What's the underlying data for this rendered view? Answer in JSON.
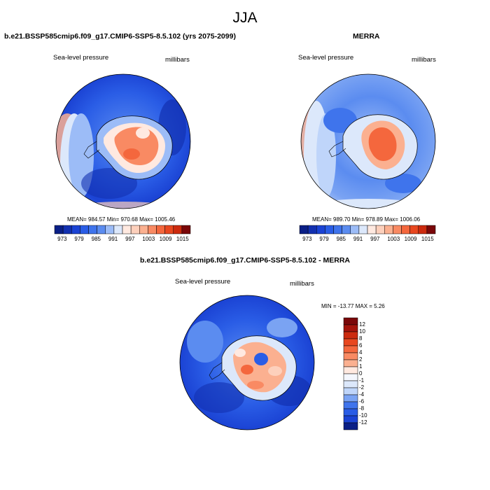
{
  "title": "JJA",
  "colors": {
    "pos": [
      "#ffe9e0",
      "#fdd0bc",
      "#fbb090",
      "#f98a63",
      "#f4673d",
      "#e8471f",
      "#cc2a0e",
      "#a4130b",
      "#7a0709"
    ],
    "neg": [
      "#dce8fb",
      "#bfd5fa",
      "#9cbcf7",
      "#7aa3f3",
      "#5b8cf0",
      "#3f74ec",
      "#2a5de6",
      "#1b43d4",
      "#1230b0",
      "#0a1f86"
    ],
    "zero": "#f4f7fe"
  },
  "panels": [
    {
      "title": "b.e21.BSSP585cmip6.f09_g17.CMIP6-SSP5-8.5.102 (yrs 2075-2099)",
      "variable": "Sea-level pressure",
      "units": "millibars",
      "stats": "MEAN= 984.57   Min= 970.68   Max= 1005.46",
      "colorbar_labels": [
        "973",
        "979",
        "985",
        "991",
        "997",
        "1003",
        "1009",
        "1015"
      ]
    },
    {
      "title": "MERRA",
      "variable": "Sea-level pressure",
      "units": "millibars",
      "stats": "MEAN= 989.70   Min= 978.89   Max= 1006.06",
      "colorbar_labels": [
        "973",
        "979",
        "985",
        "991",
        "997",
        "1003",
        "1009",
        "1015"
      ]
    },
    {
      "title": "b.e21.BSSP585cmip6.f09_g17.CMIP6-SSP5-8.5.102 - MERRA",
      "variable": "Sea-level pressure",
      "units": "millibars",
      "stats": "MIN = -13.77 MAX =   5.26",
      "colorbar_labels": [
        "12",
        "10",
        "8",
        "6",
        "4",
        "2",
        "1",
        "0",
        "-1",
        "-2",
        "-4",
        "-6",
        "-8",
        "-10",
        "-12"
      ]
    }
  ]
}
